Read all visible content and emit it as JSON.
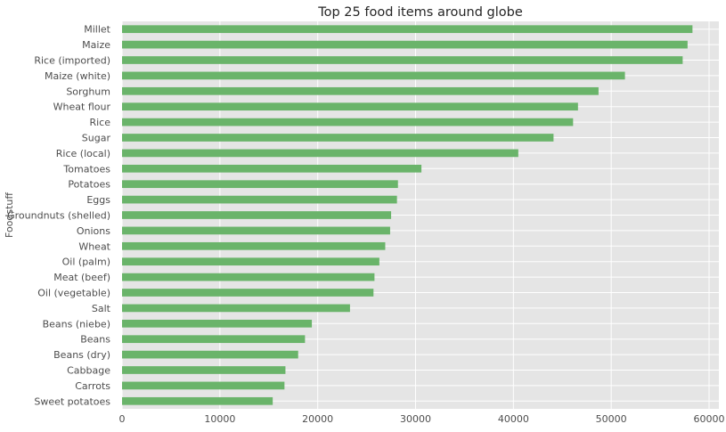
{
  "chart_data": {
    "type": "bar",
    "orientation": "horizontal",
    "title": "Top 25 food items around globe",
    "xlabel": "",
    "ylabel": "Foodstuff",
    "xlim": [
      0,
      61000
    ],
    "xticks": [
      0,
      10000,
      20000,
      30000,
      40000,
      50000,
      60000
    ],
    "grid": true,
    "legend": "none",
    "bar_color": "#6ab46a",
    "background": "#e5e5e5",
    "grid_color": "#ffffff",
    "categories": [
      "Millet",
      "Maize",
      "Rice (imported)",
      "Maize (white)",
      "Sorghum",
      "Wheat flour",
      "Rice",
      "Sugar",
      "Rice (local)",
      "Tomatoes",
      "Potatoes",
      "Eggs",
      "Groundnuts (shelled)",
      "Onions",
      "Wheat",
      "Oil (palm)",
      "Meat (beef)",
      "Oil (vegetable)",
      "Salt",
      "Beans (niebe)",
      "Beans",
      "Beans (dry)",
      "Cabbage",
      "Carrots",
      "Sweet potatoes"
    ],
    "values": [
      58300,
      57800,
      57300,
      51400,
      48700,
      46600,
      46100,
      44100,
      40500,
      30600,
      28200,
      28100,
      27500,
      27400,
      26900,
      26300,
      25800,
      25700,
      23300,
      19400,
      18700,
      18000,
      16700,
      16600,
      15400
    ]
  }
}
